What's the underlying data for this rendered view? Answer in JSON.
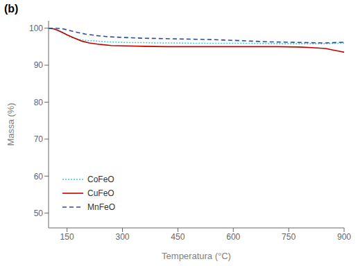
{
  "chart_data": {
    "type": "line",
    "title": "",
    "xlabel": "Temperatura (°C)",
    "ylabel": "Massa (%)",
    "annotations": [
      "(b)"
    ],
    "xlim": [
      100,
      900
    ],
    "ylim": [
      46,
      102
    ],
    "xticks": [
      150,
      300,
      450,
      600,
      750,
      900
    ],
    "yticks": [
      50,
      60,
      70,
      80,
      90,
      100
    ],
    "grid": false,
    "legend": "lower left",
    "series": [
      {
        "name": "CoFeO",
        "color": "#3ECFCF",
        "line_style": "dotted",
        "x": [
          100,
          120,
          140,
          160,
          180,
          200,
          230,
          260,
          290,
          320,
          360,
          400,
          450,
          500,
          550,
          600,
          650,
          700,
          750,
          800,
          850,
          900
        ],
        "values": [
          100.0,
          99.7,
          98.8,
          97.5,
          97.0,
          96.7,
          96.5,
          96.3,
          96.2,
          96.1,
          96.1,
          96.0,
          96.0,
          95.9,
          95.9,
          95.9,
          95.9,
          95.8,
          95.8,
          95.8,
          95.8,
          96.0
        ]
      },
      {
        "name": "CuFeO",
        "color": "#C00000",
        "line_style": "solid",
        "x": [
          100,
          115,
          130,
          150,
          170,
          190,
          210,
          240,
          270,
          310,
          360,
          420,
          480,
          540,
          600,
          660,
          720,
          780,
          820,
          850,
          870,
          885,
          900
        ],
        "values": [
          100.0,
          99.8,
          99.2,
          98.2,
          97.3,
          96.5,
          96.0,
          95.6,
          95.3,
          95.2,
          95.1,
          95.0,
          95.0,
          95.0,
          95.0,
          95.0,
          95.0,
          94.9,
          94.7,
          94.5,
          94.1,
          93.8,
          93.5
        ]
      },
      {
        "name": "MnFeO",
        "color": "#2E4999",
        "line_style": "dashed",
        "x": [
          100,
          120,
          140,
          160,
          180,
          200,
          230,
          260,
          300,
          350,
          400,
          450,
          500,
          550,
          600,
          650,
          700,
          750,
          800,
          850,
          900
        ],
        "values": [
          100.0,
          100.0,
          99.8,
          99.3,
          98.8,
          98.4,
          98.0,
          97.7,
          97.5,
          97.3,
          97.2,
          97.1,
          97.0,
          96.9,
          96.7,
          96.5,
          96.3,
          96.2,
          96.1,
          96.0,
          96.2
        ]
      }
    ]
  }
}
